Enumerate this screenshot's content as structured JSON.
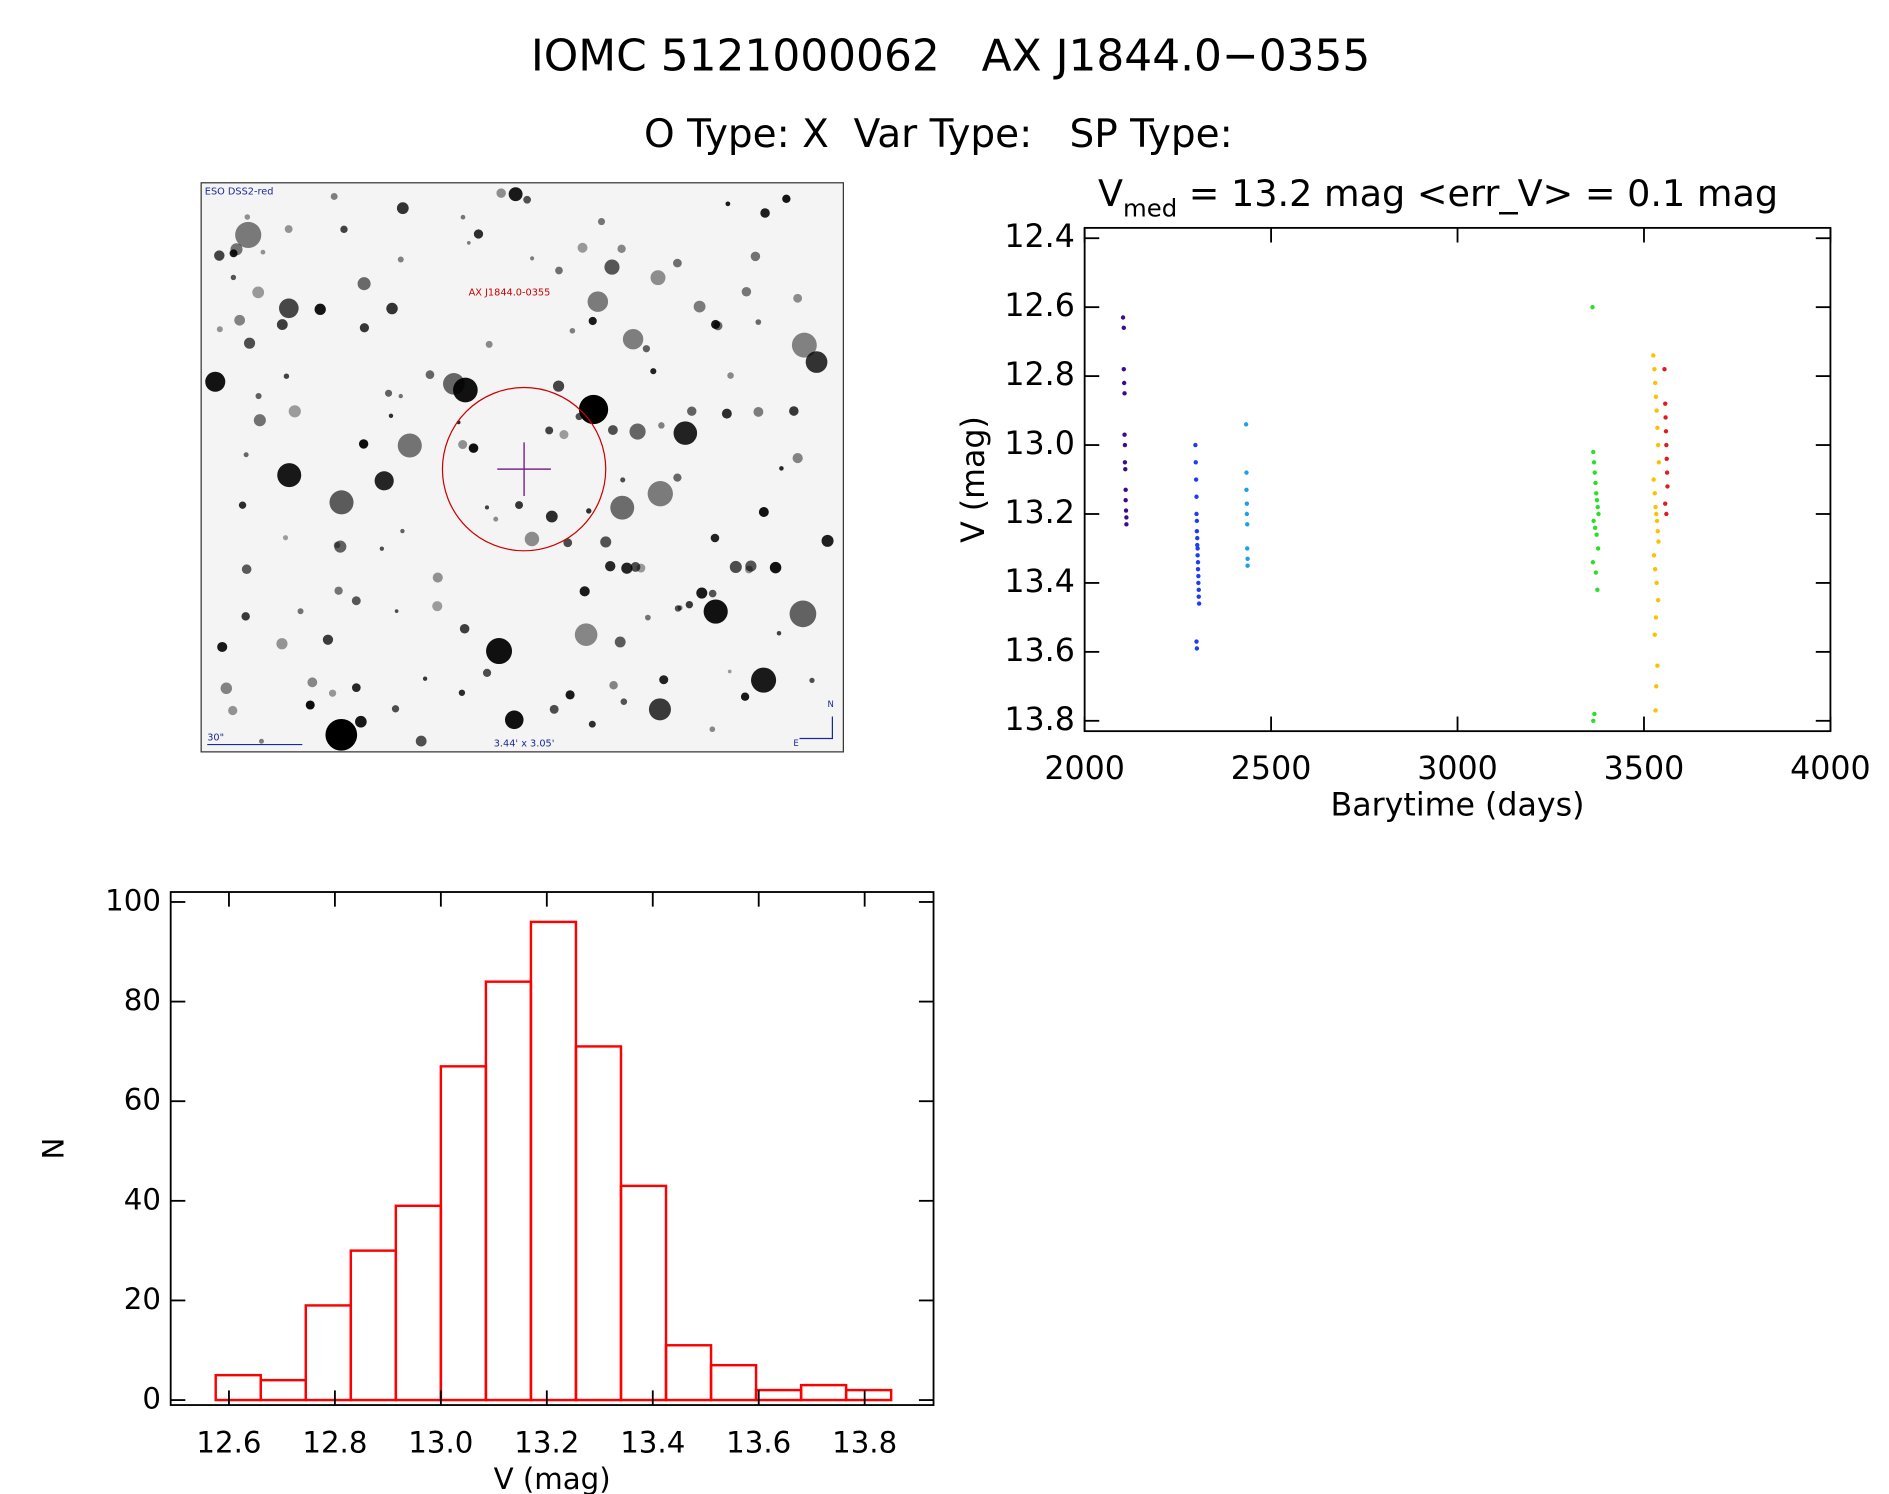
{
  "header": {
    "title": "IOMC 5121000062   AX J1844.0−0355",
    "subtitle": "O Type: X  Var Type:   SP Type:"
  },
  "image": {
    "survey": "ESO DSS2-red",
    "target": "AX J1844.0-0355",
    "scale": "30\"",
    "size": "3.44' x 3.05'",
    "north": "N",
    "east": "E"
  },
  "chart_data": [
    {
      "type": "scatter",
      "title_parts": [
        "V",
        "med",
        " = 13.2 mag <err_V> = 0.1 mag"
      ],
      "x_label": "Barytime (days)",
      "y_label": "V (mag)",
      "xlim": [
        2000,
        4000
      ],
      "xticks": [
        2000,
        2500,
        3000,
        3500,
        4000
      ],
      "ylim": [
        13.83,
        12.37
      ],
      "yticks": [
        12.4,
        12.6,
        12.8,
        {
          "value": 13,
          "label": "13.0"
        },
        13.2,
        13.4,
        13.6,
        13.8
      ],
      "series": [
        {
          "color": "#3c0a8c",
          "x": [
            2103,
            2105,
            2105,
            2106,
            2107,
            2107,
            2108,
            2108,
            2109,
            2110,
            2110,
            2111,
            2112,
            2112
          ],
          "values": [
            12.63,
            12.66,
            12.78,
            12.82,
            12.85,
            12.97,
            13.0,
            13.05,
            13.07,
            13.13,
            13.16,
            13.19,
            13.21,
            13.23
          ]
        },
        {
          "color": "#1e3cf0",
          "x": [
            2297,
            2298,
            2299,
            2300,
            2300,
            2301,
            2301,
            2302,
            2302,
            2303,
            2303,
            2304,
            2304,
            2305,
            2305,
            2306,
            2306,
            2307,
            2300,
            2301
          ],
          "values": [
            13.0,
            13.05,
            13.1,
            13.15,
            13.2,
            13.22,
            13.25,
            13.27,
            13.29,
            13.3,
            13.32,
            13.34,
            13.36,
            13.38,
            13.4,
            13.42,
            13.44,
            13.46,
            13.57,
            13.59
          ]
        },
        {
          "color": "#1ea0e6",
          "x": [
            2433,
            2434,
            2434,
            2435,
            2435,
            2436,
            2436,
            2437,
            2437
          ],
          "values": [
            12.94,
            13.08,
            13.13,
            13.17,
            13.2,
            13.23,
            13.3,
            13.33,
            13.35
          ]
        },
        {
          "color": "#28e028",
          "x": [
            3362,
            3364,
            3366,
            3368,
            3370,
            3372,
            3374,
            3376,
            3378,
            3365,
            3369,
            3373,
            3377,
            3363,
            3371,
            3375,
            3367,
            3364
          ],
          "values": [
            12.6,
            13.02,
            13.05,
            13.08,
            13.11,
            13.14,
            13.16,
            13.18,
            13.2,
            13.22,
            13.24,
            13.26,
            13.3,
            13.34,
            13.37,
            13.42,
            13.78,
            13.8
          ]
        },
        {
          "color": "#ffc000",
          "x": [
            3525,
            3528,
            3530,
            3532,
            3534,
            3536,
            3538,
            3540,
            3526,
            3529,
            3531,
            3533,
            3535,
            3537,
            3539,
            3527,
            3530,
            3534,
            3538,
            3532,
            3529,
            3536,
            3533,
            3531
          ],
          "values": [
            12.74,
            12.78,
            12.82,
            12.86,
            12.9,
            12.95,
            13.0,
            13.05,
            13.1,
            13.14,
            13.18,
            13.2,
            13.22,
            13.25,
            13.28,
            13.32,
            13.36,
            13.4,
            13.45,
            13.5,
            13.55,
            13.64,
            13.7,
            13.77
          ]
        },
        {
          "color": "#dc1e1e",
          "x": [
            3555,
            3557,
            3558,
            3559,
            3560,
            3561,
            3562,
            3563,
            3557,
            3560
          ],
          "values": [
            12.78,
            12.88,
            12.92,
            12.96,
            13.0,
            13.04,
            13.08,
            13.12,
            13.17,
            13.2
          ]
        }
      ]
    },
    {
      "type": "histogram",
      "x_label": "V (mag)",
      "y_label": "N",
      "color": "#ff0000",
      "bins": [
        12.575,
        12.66,
        12.745,
        12.83,
        12.915,
        13.0,
        13.085,
        13.17,
        13.255,
        13.34,
        13.425,
        13.51,
        13.595,
        13.68,
        13.765,
        13.85
      ],
      "values": [
        5,
        4,
        19,
        30,
        39,
        67,
        84,
        96,
        71,
        43,
        11,
        7,
        2,
        3,
        2
      ],
      "xlim": [
        12.49,
        13.93
      ],
      "xticks": [
        12.6,
        12.8,
        {
          "value": 13,
          "label": "13.0"
        },
        13.2,
        13.4,
        13.6,
        13.8
      ],
      "ylim": [
        -1,
        102
      ],
      "yticks": [
        0,
        20,
        40,
        60,
        80,
        100
      ]
    }
  ]
}
